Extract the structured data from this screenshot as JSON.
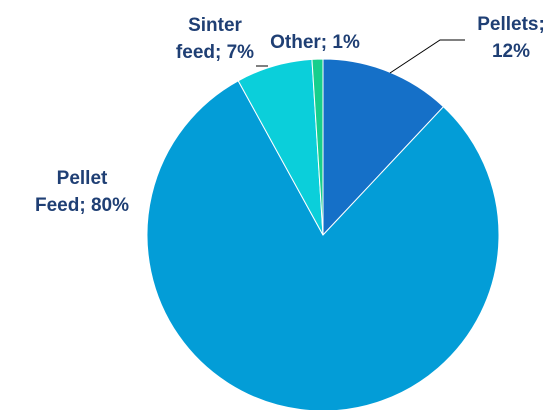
{
  "chart_data": {
    "type": "pie",
    "title": "",
    "slices": [
      {
        "name": "Pellets",
        "value": 12,
        "label_lines": [
          "Pellets;",
          "12%"
        ],
        "color": "#1570c8"
      },
      {
        "name": "Pellet Feed",
        "value": 80,
        "label_lines": [
          "Pellet",
          "Feed; 80%"
        ],
        "color": "#039dd7"
      },
      {
        "name": "Sinter feed",
        "value": 7,
        "label_lines": [
          "Sinter",
          "feed; 7%"
        ],
        "color": "#0bcfda"
      },
      {
        "name": "Other",
        "value": 1,
        "label_lines": [
          "Other; 1%"
        ],
        "color": "#16cf8c"
      }
    ],
    "start_angle_deg": 0,
    "direction": "clockwise",
    "label_color": "#1f3f74"
  }
}
